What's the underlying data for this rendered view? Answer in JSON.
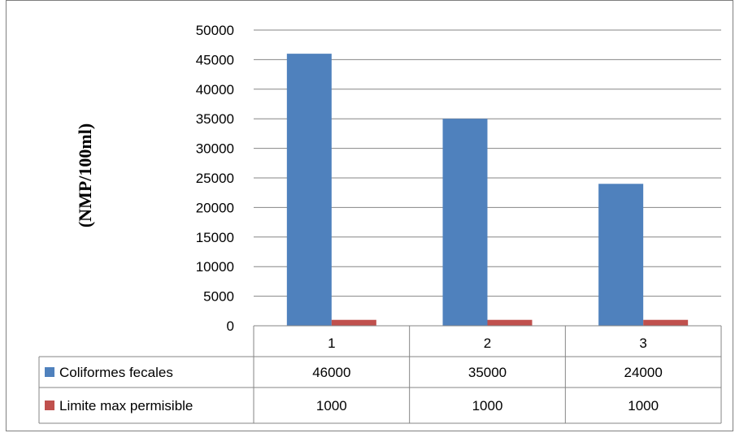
{
  "chart_data": {
    "type": "bar",
    "ylabel": "(NMP/100ml)",
    "categories": [
      "1",
      "2",
      "3"
    ],
    "ylim": [
      0,
      50000
    ],
    "yticks": [
      0,
      5000,
      10000,
      15000,
      20000,
      25000,
      30000,
      35000,
      40000,
      45000,
      50000
    ],
    "grid": true,
    "legend": "data-table",
    "series": [
      {
        "name": "Coliformes fecales",
        "values": [
          46000,
          35000,
          24000
        ],
        "color": "#4f81bd"
      },
      {
        "name": "Limite max permisible",
        "values": [
          1000,
          1000,
          1000
        ],
        "color": "#c0504d"
      }
    ]
  }
}
